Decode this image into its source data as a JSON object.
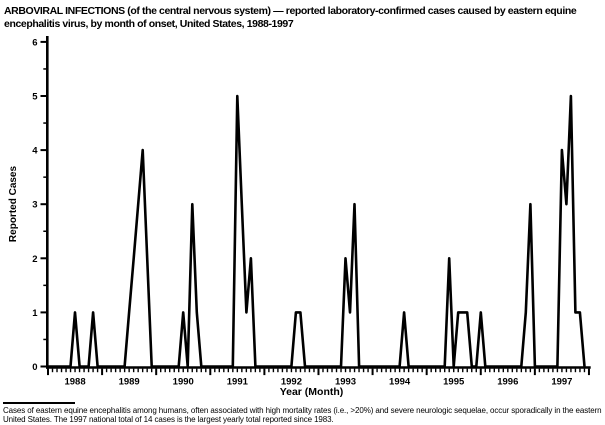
{
  "chart_data": {
    "type": "line",
    "title": "ARBOVIRAL INFECTIONS (of the central nervous system) — reported laboratory-confirmed cases caused by eastern equine encephalitis virus, by month of onset, United States, 1988-1997",
    "xlabel": "Year (Month)",
    "ylabel": "Reported Cases",
    "ylim": [
      0,
      6
    ],
    "y_ticks": [
      0,
      1,
      2,
      3,
      4,
      5,
      6
    ],
    "y_minor_tick_step": 0.5,
    "x_axis": {
      "unit": "month",
      "minor_tick_every_months": 1,
      "major_tick_every_months": 12
    },
    "grid": false,
    "legend": "none",
    "line_color": "#000000",
    "years": [
      1988,
      1989,
      1990,
      1991,
      1992,
      1993,
      1994,
      1995,
      1996,
      1997
    ],
    "month_order": [
      "Jan",
      "Feb",
      "Mar",
      "Apr",
      "May",
      "Jun",
      "Jul",
      "Aug",
      "Sep",
      "Oct",
      "Nov",
      "Dec"
    ],
    "series": [
      {
        "name": "Reported laboratory-confirmed cases",
        "values_by_year": [
          [
            0,
            0,
            0,
            0,
            0,
            0,
            1,
            0,
            0,
            0,
            1,
            0
          ],
          [
            0,
            0,
            0,
            0,
            0,
            0,
            1,
            2,
            3,
            4,
            2,
            0
          ],
          [
            0,
            0,
            0,
            0,
            0,
            0,
            1,
            0,
            3,
            1,
            0,
            0
          ],
          [
            0,
            0,
            0,
            0,
            0,
            0,
            5,
            3,
            1,
            2,
            0,
            0
          ],
          [
            0,
            0,
            0,
            0,
            0,
            0,
            0,
            1,
            1,
            0,
            0,
            0
          ],
          [
            0,
            0,
            0,
            0,
            0,
            0,
            2,
            1,
            3,
            0,
            0,
            0
          ],
          [
            0,
            0,
            0,
            0,
            0,
            0,
            0,
            1,
            0,
            0,
            0,
            0
          ],
          [
            0,
            0,
            0,
            0,
            0,
            2,
            0,
            1,
            1,
            1,
            0,
            0
          ],
          [
            1,
            0,
            0,
            0,
            0,
            0,
            0,
            0,
            0,
            0,
            1,
            3
          ],
          [
            0,
            0,
            0,
            0,
            0,
            0,
            4,
            3,
            5,
            1,
            1,
            0
          ]
        ]
      }
    ]
  },
  "footnote": "Cases of eastern equine encephalitis among humans, often associated with high mortality rates (i.e., >20%) and severe neurologic sequelae, occur sporadically in the eastern United States. The 1997 national total of 14 cases is the largest yearly total reported since 1983."
}
